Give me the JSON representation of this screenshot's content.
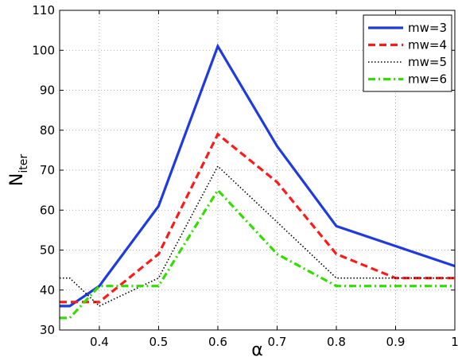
{
  "chart_data": {
    "type": "line",
    "title": "",
    "xlabel": "α",
    "ylabel": "N",
    "ylabel_subscript": "iter",
    "xlim": [
      0.333,
      1.0
    ],
    "ylim": [
      30,
      110
    ],
    "xticks": [
      0.4,
      0.5,
      0.6,
      0.7,
      0.8,
      0.9,
      1.0
    ],
    "xtick_labels": [
      "0.4",
      "0.5",
      "0.6",
      "0.7",
      "0.8",
      "0.9",
      "1"
    ],
    "yticks": [
      30,
      40,
      50,
      60,
      70,
      80,
      90,
      100,
      110
    ],
    "ytick_labels": [
      "30",
      "40",
      "50",
      "60",
      "70",
      "80",
      "90",
      "100",
      "110"
    ],
    "grid": true,
    "legend_position": "top-right",
    "x": [
      0.333,
      0.35,
      0.4,
      0.5,
      0.6,
      0.7,
      0.8,
      0.9,
      1.0
    ],
    "series": [
      {
        "name": "mw=3",
        "color": "#1f3bdf",
        "dash": "solid",
        "values": [
          36,
          36,
          41,
          61,
          101,
          76,
          56,
          51,
          46
        ]
      },
      {
        "name": "mw=4",
        "color": "#ff1a1a",
        "dash": "dashed",
        "values": [
          37,
          37,
          37,
          49,
          79,
          67,
          49,
          43,
          43
        ]
      },
      {
        "name": "mw=5",
        "color": "#000000",
        "dash": "dotted",
        "values": [
          43,
          43,
          36,
          43,
          71,
          57,
          43,
          43,
          43
        ]
      },
      {
        "name": "mw=6",
        "color": "#33dd00",
        "dash": "dashdot",
        "values": [
          33,
          33,
          41,
          41,
          65,
          49,
          41,
          41,
          41
        ]
      }
    ]
  }
}
